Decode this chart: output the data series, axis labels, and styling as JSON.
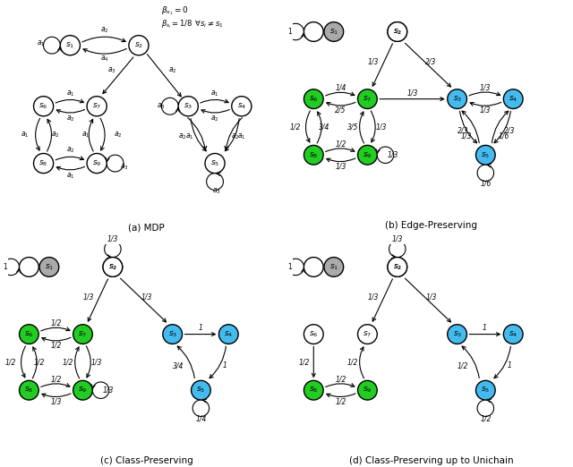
{
  "colors": {
    "white": "#FFFFFF",
    "green": "#22CC22",
    "cyan": "#44BBEE",
    "gray": "#AAAAAA",
    "black": "#000000"
  },
  "node_r": 0.13,
  "subplots": [
    "(a) MDP",
    "(b) Edge-Preserving",
    "(c) Class-Preserving",
    "(d) Class-Preserving up to Unichain"
  ]
}
